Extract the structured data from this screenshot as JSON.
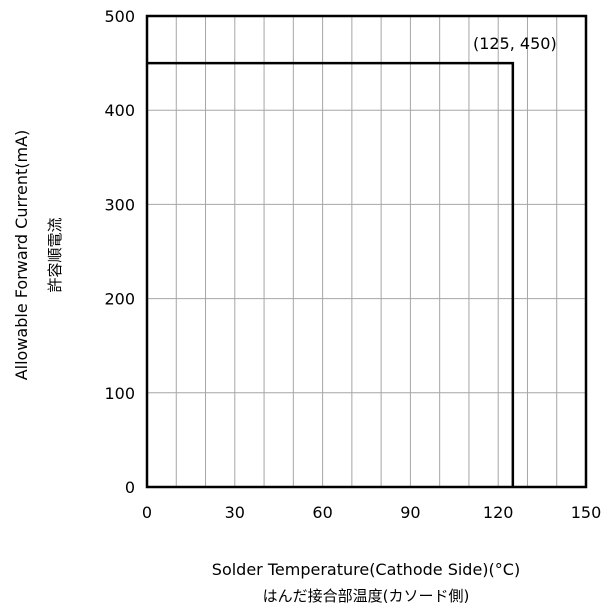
{
  "chart_data": {
    "type": "line",
    "title": "",
    "xlabel": "Solder Temperature(Cathode Side)(°C)",
    "xlabel_sub": "はんだ接合部温度(カソード側)",
    "ylabel": "Allowable Forward Current(mA)",
    "ylabel_sub": "許容順電流",
    "xlim": [
      0,
      150
    ],
    "ylim": [
      0,
      500
    ],
    "x_ticks": [
      "0",
      "30",
      "60",
      "90",
      "120",
      "150"
    ],
    "y_ticks": [
      "0",
      "100",
      "200",
      "300",
      "400",
      "500"
    ],
    "grid": true,
    "series": [
      {
        "x": [
          0,
          125,
          125
        ],
        "y": [
          450,
          450,
          0
        ]
      }
    ],
    "annotations": [
      {
        "text": "(125, 450)",
        "x": 125,
        "y": 450
      }
    ]
  }
}
